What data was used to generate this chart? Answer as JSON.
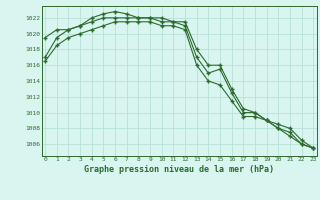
{
  "x": [
    0,
    1,
    2,
    3,
    4,
    5,
    6,
    7,
    8,
    9,
    10,
    11,
    12,
    13,
    14,
    15,
    16,
    17,
    18,
    19,
    20,
    21,
    22,
    23
  ],
  "line1": [
    1017.0,
    1019.5,
    1020.5,
    1021.0,
    1022.0,
    1022.5,
    1022.8,
    1022.5,
    1022.0,
    1022.0,
    1022.0,
    1021.5,
    1021.5,
    1018.0,
    1016.0,
    1016.0,
    1013.0,
    1010.5,
    1010.0,
    1009.0,
    1008.0,
    1007.0,
    1006.0,
    1005.5
  ],
  "line2": [
    1019.5,
    1020.5,
    1020.5,
    1021.0,
    1021.5,
    1022.0,
    1022.0,
    1022.0,
    1022.0,
    1022.0,
    1021.5,
    1021.5,
    1021.0,
    1017.0,
    1015.0,
    1015.5,
    1012.5,
    1010.0,
    1010.0,
    1009.0,
    1008.0,
    1007.5,
    1006.0,
    1005.5
  ],
  "line3": [
    1016.5,
    1018.5,
    1019.5,
    1020.0,
    1020.5,
    1021.0,
    1021.5,
    1021.5,
    1021.5,
    1021.5,
    1021.0,
    1021.0,
    1020.5,
    1016.0,
    1014.0,
    1013.5,
    1011.5,
    1009.5,
    1009.5,
    1009.0,
    1008.5,
    1008.0,
    1006.5,
    1005.5
  ],
  "line_color": "#2d6a2d",
  "bg_color": "#d8f5f0",
  "grid_color": "#b8e0da",
  "xlabel": "Graphe pression niveau de la mer (hPa)",
  "ylim": [
    1004.5,
    1023.5
  ],
  "yticks": [
    1006,
    1008,
    1010,
    1012,
    1014,
    1016,
    1018,
    1020,
    1022
  ],
  "xticks": [
    0,
    1,
    2,
    3,
    4,
    5,
    6,
    7,
    8,
    9,
    10,
    11,
    12,
    13,
    14,
    15,
    16,
    17,
    18,
    19,
    20,
    21,
    22,
    23
  ]
}
